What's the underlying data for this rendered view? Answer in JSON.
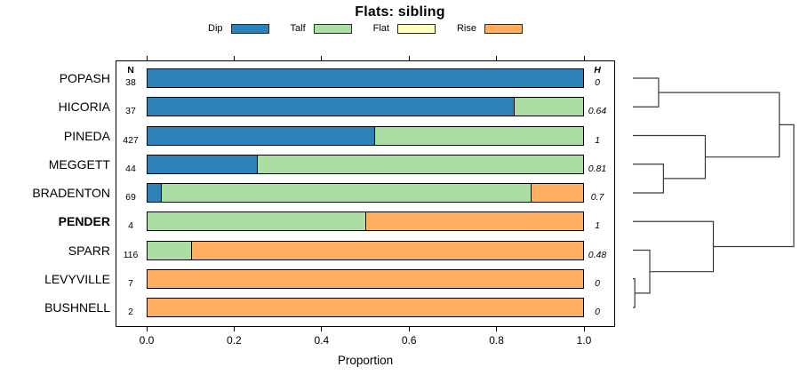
{
  "chart_data": {
    "type": "bar",
    "orientation": "horizontal-stacked",
    "title": "Flats: sibling",
    "xlabel": "Proportion",
    "xlim": [
      0,
      1
    ],
    "x_ticks": [
      "0.0",
      "0.2",
      "0.4",
      "0.6",
      "0.8",
      "1.0"
    ],
    "grid": false,
    "legend_position": "top-center",
    "n_header": "N",
    "h_header": "H",
    "categories": [
      "Dip",
      "Talf",
      "Flat",
      "Rise"
    ],
    "colors": {
      "Dip": "#2B83BA",
      "Talf": "#ABDDA4",
      "Flat": "#FFFFBF",
      "Rise": "#FDAE61"
    },
    "legend": [
      {
        "label": "Dip",
        "color": "#2B83BA"
      },
      {
        "label": "Talf",
        "color": "#ABDDA4"
      },
      {
        "label": "Flat",
        "color": "#FFFFBF"
      },
      {
        "label": "Rise",
        "color": "#FDAE61"
      }
    ],
    "rows": [
      {
        "label": "POPASH",
        "n": "38",
        "h": "0",
        "bold": false,
        "segments": [
          {
            "category": "Dip",
            "value": 1.0
          }
        ]
      },
      {
        "label": "HICORIA",
        "n": "37",
        "h": "0.64",
        "bold": false,
        "segments": [
          {
            "category": "Dip",
            "value": 0.84
          },
          {
            "category": "Talf",
            "value": 0.16
          }
        ]
      },
      {
        "label": "PINEDA",
        "n": "427",
        "h": "1",
        "bold": false,
        "segments": [
          {
            "category": "Dip",
            "value": 0.52
          },
          {
            "category": "Talf",
            "value": 0.48
          }
        ]
      },
      {
        "label": "MEGGETT",
        "n": "44",
        "h": "0.81",
        "bold": false,
        "segments": [
          {
            "category": "Dip",
            "value": 0.25
          },
          {
            "category": "Talf",
            "value": 0.75
          }
        ]
      },
      {
        "label": "BRADENTON",
        "n": "69",
        "h": "0.7",
        "bold": false,
        "segments": [
          {
            "category": "Dip",
            "value": 0.03
          },
          {
            "category": "Talf",
            "value": 0.85
          },
          {
            "category": "Rise",
            "value": 0.12
          }
        ]
      },
      {
        "label": "PENDER",
        "n": "4",
        "h": "1",
        "bold": true,
        "segments": [
          {
            "category": "Talf",
            "value": 0.5
          },
          {
            "category": "Rise",
            "value": 0.5
          }
        ]
      },
      {
        "label": "SPARR",
        "n": "116",
        "h": "0.48",
        "bold": false,
        "segments": [
          {
            "category": "Talf",
            "value": 0.1
          },
          {
            "category": "Rise",
            "value": 0.9
          }
        ]
      },
      {
        "label": "LEVYVILLE",
        "n": "7",
        "h": "0",
        "bold": false,
        "segments": [
          {
            "category": "Rise",
            "value": 1.0
          }
        ]
      },
      {
        "label": "BUSHNELL",
        "n": "2",
        "h": "0",
        "bold": false,
        "segments": [
          {
            "category": "Rise",
            "value": 1.0
          }
        ]
      }
    ],
    "dendrogram": {
      "leaf_order": [
        "POPASH",
        "HICORIA",
        "PINEDA",
        "MEGGETT",
        "BRADENTON",
        "PENDER",
        "SPARR",
        "LEVYVILLE",
        "BUSHNELL"
      ],
      "merges": [
        {
          "a": "L0",
          "b": "L1",
          "height": 0.16
        },
        {
          "a": "L3",
          "b": "L4",
          "height": 0.19
        },
        {
          "a": "L2",
          "b": "N1",
          "height": 0.45
        },
        {
          "a": "N0",
          "b": "N2",
          "height": 0.91
        },
        {
          "a": "L7",
          "b": "L8",
          "height": 0.012
        },
        {
          "a": "L6",
          "b": "N4",
          "height": 0.105
        },
        {
          "a": "L5",
          "b": "N5",
          "height": 0.5
        },
        {
          "a": "N3",
          "b": "N6",
          "height": 1.0
        }
      ]
    }
  }
}
